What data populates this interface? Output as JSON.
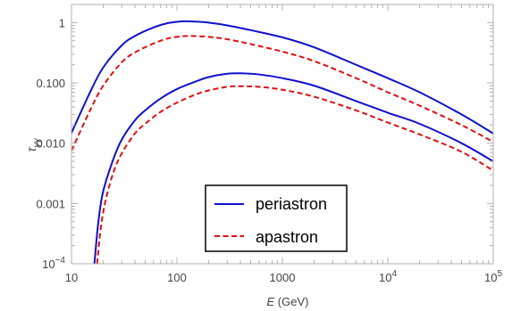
{
  "chart_data": {
    "type": "line",
    "x_scale": "log",
    "y_scale": "log",
    "xlim": [
      10,
      100000
    ],
    "ylim": [
      0.0001,
      2
    ],
    "xlabel": {
      "italic": "E",
      "rest": " (GeV)"
    },
    "ylabel": {
      "base": "τ",
      "sub": "γγ"
    },
    "x_ticks": [
      {
        "value": 10,
        "label": "10"
      },
      {
        "value": 100,
        "label": "100"
      },
      {
        "value": 1000,
        "label": "1000"
      },
      {
        "value": 10000,
        "label": "10",
        "sup": "4"
      },
      {
        "value": 100000,
        "label": "10",
        "sup": "5"
      }
    ],
    "y_ticks": [
      {
        "value": 0.0001,
        "label": "10",
        "sup": "−4"
      },
      {
        "value": 0.001,
        "label": "0.001"
      },
      {
        "value": 0.01,
        "label": "0.010"
      },
      {
        "value": 0.1,
        "label": "0.100"
      },
      {
        "value": 1,
        "label": "1"
      }
    ],
    "grid": false,
    "legend_position": "bottom-center",
    "legend": [
      {
        "label": "periastron",
        "color": "#1010cc",
        "dash": "solid"
      },
      {
        "label": "apastron",
        "color": "#dd1111",
        "dash": "dashed"
      }
    ],
    "series": [
      {
        "group": "periastron",
        "color": "#1010cc",
        "dash": "solid",
        "points": [
          [
            10,
            0.0148
          ],
          [
            15,
            0.07
          ],
          [
            20,
            0.18
          ],
          [
            30,
            0.42
          ],
          [
            40,
            0.6
          ],
          [
            60,
            0.83
          ],
          [
            80,
            0.97
          ],
          [
            100,
            1.03
          ],
          [
            120,
            1.05
          ],
          [
            150,
            1.04
          ],
          [
            200,
            1.0
          ],
          [
            300,
            0.9
          ],
          [
            500,
            0.75
          ],
          [
            1000,
            0.57
          ],
          [
            2000,
            0.39
          ],
          [
            5000,
            0.2
          ],
          [
            10000,
            0.12
          ],
          [
            20000,
            0.07
          ],
          [
            50000,
            0.03
          ],
          [
            100000,
            0.0145
          ]
        ]
      },
      {
        "group": "apastron",
        "color": "#dd1111",
        "dash": "dashed",
        "points": [
          [
            10,
            0.0075
          ],
          [
            15,
            0.035
          ],
          [
            20,
            0.09
          ],
          [
            30,
            0.22
          ],
          [
            40,
            0.32
          ],
          [
            60,
            0.45
          ],
          [
            80,
            0.54
          ],
          [
            100,
            0.58
          ],
          [
            130,
            0.6
          ],
          [
            200,
            0.58
          ],
          [
            300,
            0.53
          ],
          [
            500,
            0.44
          ],
          [
            1000,
            0.33
          ],
          [
            2000,
            0.23
          ],
          [
            5000,
            0.12
          ],
          [
            10000,
            0.07
          ],
          [
            20000,
            0.042
          ],
          [
            50000,
            0.02
          ],
          [
            100000,
            0.0105
          ]
        ]
      },
      {
        "group": "periastron",
        "color": "#1010cc",
        "dash": "solid",
        "points": [
          [
            16.5,
            0.0001
          ],
          [
            18,
            0.0005
          ],
          [
            20,
            0.0016
          ],
          [
            25,
            0.0055
          ],
          [
            30,
            0.0115
          ],
          [
            40,
            0.024
          ],
          [
            50,
            0.035
          ],
          [
            70,
            0.055
          ],
          [
            100,
            0.079
          ],
          [
            150,
            0.105
          ],
          [
            200,
            0.125
          ],
          [
            300,
            0.142
          ],
          [
            400,
            0.144
          ],
          [
            600,
            0.138
          ],
          [
            1000,
            0.12
          ],
          [
            2000,
            0.09
          ],
          [
            5000,
            0.05
          ],
          [
            10000,
            0.032
          ],
          [
            20000,
            0.021
          ],
          [
            50000,
            0.01
          ],
          [
            100000,
            0.005
          ]
        ]
      },
      {
        "group": "apastron",
        "color": "#dd1111",
        "dash": "dashed",
        "points": [
          [
            17.5,
            0.0001
          ],
          [
            19,
            0.0004
          ],
          [
            21,
            0.0011
          ],
          [
            25,
            0.0033
          ],
          [
            30,
            0.0068
          ],
          [
            40,
            0.0145
          ],
          [
            50,
            0.021
          ],
          [
            70,
            0.033
          ],
          [
            100,
            0.047
          ],
          [
            150,
            0.064
          ],
          [
            200,
            0.075
          ],
          [
            300,
            0.086
          ],
          [
            400,
            0.088
          ],
          [
            600,
            0.086
          ],
          [
            1000,
            0.077
          ],
          [
            2000,
            0.059
          ],
          [
            5000,
            0.035
          ],
          [
            10000,
            0.022
          ],
          [
            20000,
            0.014
          ],
          [
            50000,
            0.0072
          ],
          [
            100000,
            0.0035
          ]
        ]
      }
    ]
  }
}
